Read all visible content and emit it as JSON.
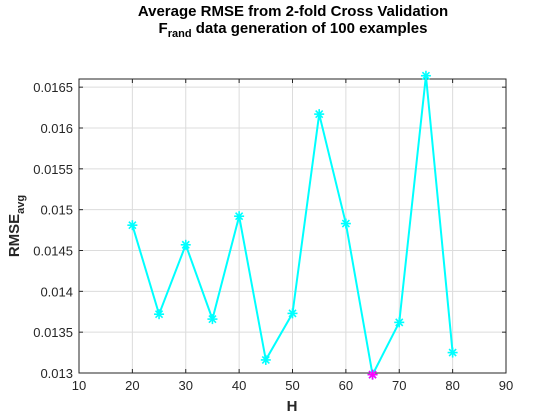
{
  "chart_data": {
    "type": "line",
    "title": {
      "line1": "Average RMSE from 2-fold Cross Validation",
      "line2_main": "F",
      "line2_sub": "rand",
      "line2_rest": " data generation of 100 examples"
    },
    "xlabel": "H",
    "ylabel": {
      "main": "RMSE",
      "sub": "avg"
    },
    "xlim": [
      10,
      90
    ],
    "ylim": [
      0.013,
      0.0166
    ],
    "xticks": [
      10,
      20,
      30,
      40,
      50,
      60,
      70,
      80,
      90
    ],
    "xtick_labels": [
      "10",
      "20",
      "30",
      "40",
      "50",
      "60",
      "70",
      "80",
      "90"
    ],
    "yticks": [
      0.013,
      0.0135,
      0.014,
      0.0145,
      0.015,
      0.0155,
      0.016,
      0.0165
    ],
    "ytick_labels": [
      "0.013",
      "0.0135",
      "0.014",
      "0.0145",
      "0.015",
      "0.0155",
      "0.016",
      "0.0165"
    ],
    "grid": true,
    "series": [
      {
        "color": "#00ffff",
        "marker": "asterisk",
        "x": [
          20,
          25,
          30,
          35,
          40,
          45,
          50,
          55,
          60,
          65,
          70,
          75,
          80
        ],
        "y": [
          0.01481,
          0.01372,
          0.01457,
          0.01366,
          0.01492,
          0.01316,
          0.01373,
          0.01617,
          0.01483,
          0.01298,
          0.01362,
          0.01664,
          0.01325
        ]
      }
    ],
    "highlight": {
      "x": 65,
      "y": 0.01298,
      "color": "#ff00ff",
      "marker": "asterisk"
    }
  }
}
